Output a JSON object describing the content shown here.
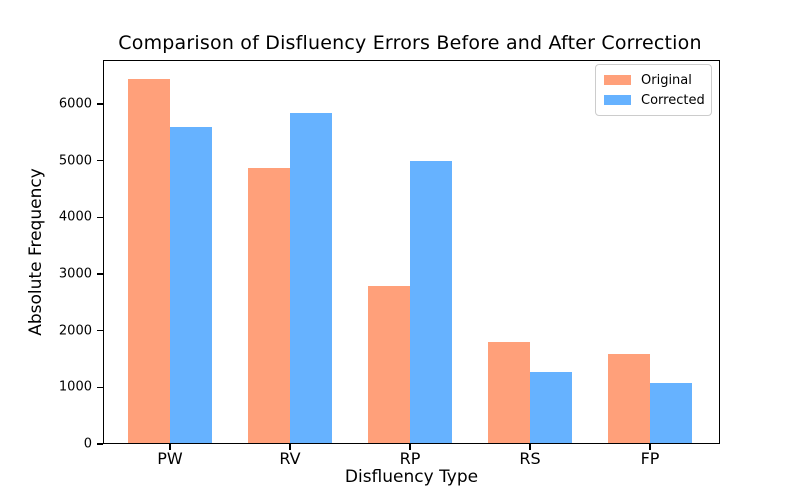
{
  "chart_data": {
    "type": "bar",
    "title": "Comparison of Disfluency Errors Before and After Correction",
    "xlabel": "Disfluency Type",
    "ylabel": "Absolute Frequency",
    "categories": [
      "PW",
      "RV",
      "RP",
      "RS",
      "FP"
    ],
    "series": [
      {
        "name": "Original",
        "color": "#FFA07A",
        "values": [
          6430,
          4850,
          2770,
          1790,
          1565
        ]
      },
      {
        "name": "Corrected",
        "color": "#66B2FF",
        "values": [
          5580,
          5820,
          4980,
          1255,
          1065
        ]
      }
    ],
    "ylim": [
      0,
      6760
    ],
    "yticks": [
      0,
      1000,
      2000,
      3000,
      4000,
      5000,
      6000
    ],
    "legend_position": "upper right",
    "grid": false,
    "background": "#ffffff"
  }
}
